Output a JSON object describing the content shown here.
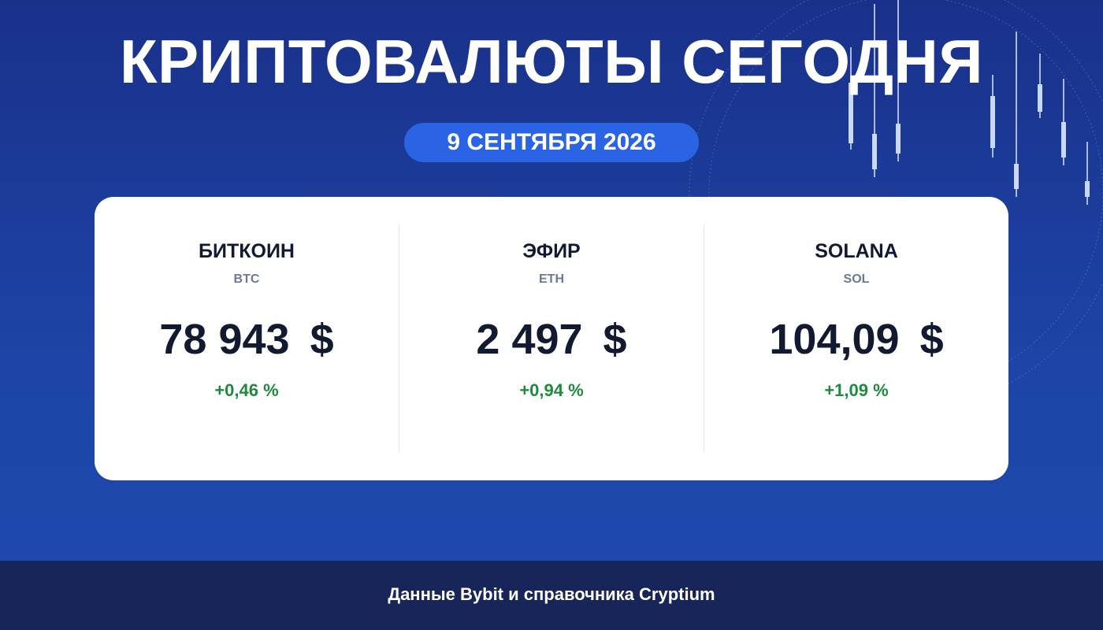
{
  "header": {
    "title": "КРИПТОВАЛЮТЫ СЕГОДНЯ",
    "date": "9 СЕНТЯБРЯ 2026"
  },
  "cards": [
    {
      "name": "БИТКОИН",
      "ticker": "BTC",
      "price": "78 943",
      "currency": "$",
      "change": "+0,46 %"
    },
    {
      "name": "ЭФИР",
      "ticker": "ETH",
      "price": "2 497",
      "currency": "$",
      "change": "+0,94 %"
    },
    {
      "name": "SOLANA",
      "ticker": "SOL",
      "price": "104,09",
      "currency": "$",
      "change": "+1,09 %"
    }
  ],
  "footer": {
    "source": "Данные Bybit и справочника Cryptium"
  }
}
